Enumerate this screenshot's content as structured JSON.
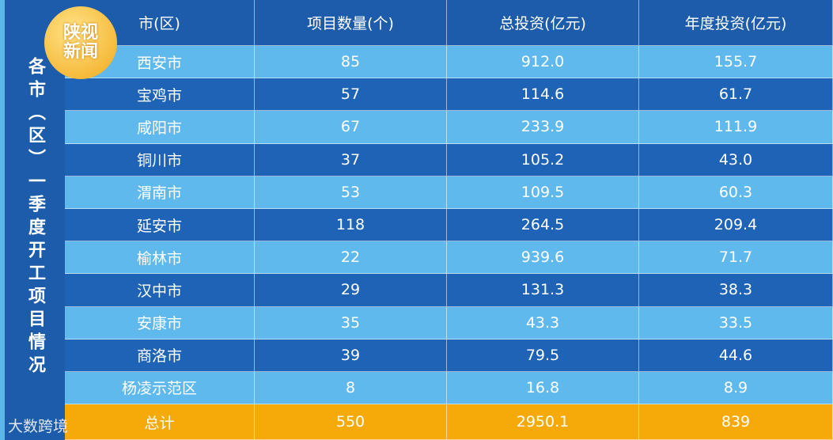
{
  "side_title": "各市（区）一季度开工项目情况",
  "logo": [
    "陕视",
    "新闻"
  ],
  "watermark": "大数跨境",
  "table": {
    "header": [
      "市(区)",
      "项目数量(个)",
      "总投资(亿元)",
      "年度投资(亿元)"
    ],
    "rows": [
      [
        "西安市",
        "85",
        "912.0",
        "155.7"
      ],
      [
        "宝鸡市",
        "57",
        "114.6",
        "61.7"
      ],
      [
        "咸阳市",
        "67",
        "233.9",
        "111.9"
      ],
      [
        "铜川市",
        "37",
        "105.2",
        "43.0"
      ],
      [
        "渭南市",
        "53",
        "109.5",
        "60.3"
      ],
      [
        "延安市",
        "118",
        "264.5",
        "209.4"
      ],
      [
        "榆林市",
        "22",
        "939.6",
        "71.7"
      ],
      [
        "汉中市",
        "29",
        "131.3",
        "38.3"
      ],
      [
        "安康市",
        "35",
        "43.3",
        "33.5"
      ],
      [
        "商洛市",
        "39",
        "79.5",
        "44.6"
      ],
      [
        "杨凌示范区",
        "8",
        "16.8",
        "8.9"
      ]
    ],
    "total": [
      "总计",
      "550",
      "2950.1",
      "839"
    ]
  }
}
